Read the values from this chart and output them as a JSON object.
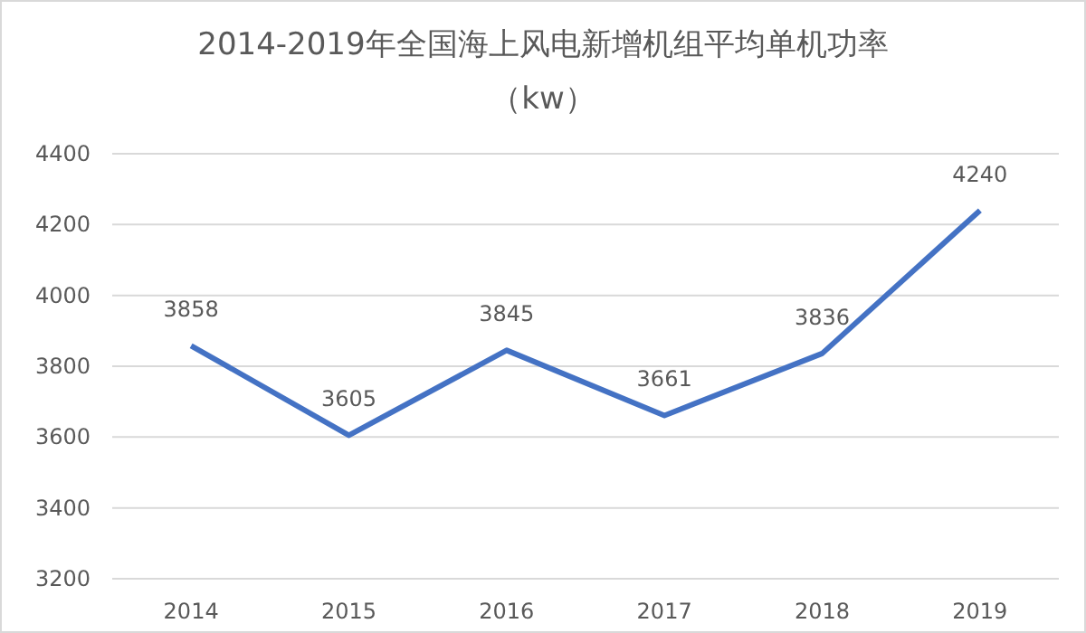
{
  "chart_data": {
    "type": "line",
    "title": "2014-2019年全国海上风电新增机组平均单机功率",
    "subtitle": "（kw）",
    "categories": [
      "2014",
      "2015",
      "2016",
      "2017",
      "2018",
      "2019"
    ],
    "series": [
      {
        "color": "#4472c4",
        "values": [
          3858,
          3605,
          3845,
          3661,
          3836,
          4240
        ]
      }
    ],
    "ylim": [
      3200,
      4400
    ],
    "yticks": [
      3200,
      3400,
      3600,
      3800,
      4000,
      4200,
      4400
    ],
    "grid": "y",
    "data_labels": true,
    "marker": "none",
    "line_style": "solid"
  }
}
